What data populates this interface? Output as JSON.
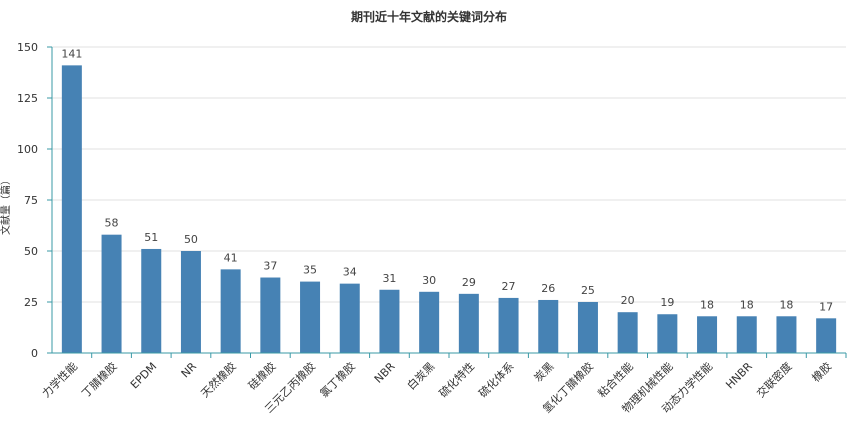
{
  "chart_data": {
    "type": "bar",
    "title": "期刊近十年文献的关键词分布",
    "xlabel": "",
    "ylabel": "文献量（篇）",
    "ylim": [
      0,
      150
    ],
    "yticks": [
      0,
      25,
      50,
      75,
      100,
      125,
      150
    ],
    "grid": true,
    "bar_color": "#4682b4",
    "axis_color": "#3a9aa6",
    "categories": [
      "力学性能",
      "丁腈橡胶",
      "EPDM",
      "NR",
      "天然橡胶",
      "硅橡胶",
      "三元乙丙橡胶",
      "氯丁橡胶",
      "NBR",
      "白炭黑",
      "硫化特性",
      "硫化体系",
      "炭黑",
      "氢化丁腈橡胶",
      "粘合性能",
      "物理机械性能",
      "动态力学性能",
      "HNBR",
      "交联密度",
      "橡胶"
    ],
    "values": [
      141,
      58,
      51,
      50,
      41,
      37,
      35,
      34,
      31,
      30,
      29,
      27,
      26,
      25,
      20,
      19,
      18,
      18,
      18,
      17
    ]
  }
}
